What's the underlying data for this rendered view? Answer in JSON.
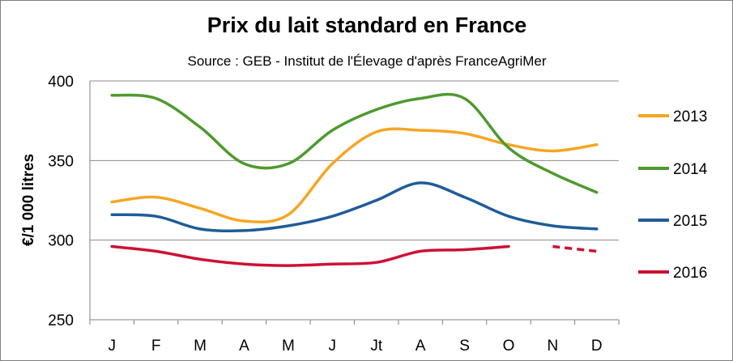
{
  "chart_data": {
    "type": "line",
    "title": "Prix du lait standard en France",
    "subtitle": "Source : GEB - Institut de l'Élevage d'après FranceAgriMer",
    "ylabel": "€/1 000 litres",
    "xlabel": "",
    "categories": [
      "J",
      "F",
      "M",
      "A",
      "M",
      "J",
      "Jt",
      "A",
      "S",
      "O",
      "N",
      "D"
    ],
    "ylim": [
      250,
      400
    ],
    "yticks": [
      250,
      300,
      350,
      400
    ],
    "grid": "horizontal",
    "legend_position": "right",
    "series": [
      {
        "name": "2013",
        "color": "#f5a623",
        "values": [
          324,
          327,
          320,
          312,
          316,
          348,
          368,
          369,
          367,
          360,
          356,
          360
        ]
      },
      {
        "name": "2014",
        "color": "#4e9a2e",
        "values": [
          391,
          389,
          371,
          348,
          348,
          369,
          382,
          389,
          389,
          358,
          342,
          330
        ]
      },
      {
        "name": "2015",
        "color": "#1f5c99",
        "values": [
          316,
          315,
          307,
          306,
          309,
          315,
          325,
          336,
          327,
          315,
          309,
          307
        ]
      },
      {
        "name": "2016",
        "color": "#cc1133",
        "values": [
          296,
          293,
          288,
          285,
          284,
          285,
          286,
          293,
          294,
          296,
          null,
          null
        ],
        "projection": [
          [
            10,
            296
          ],
          [
            11,
            293
          ]
        ]
      }
    ]
  }
}
